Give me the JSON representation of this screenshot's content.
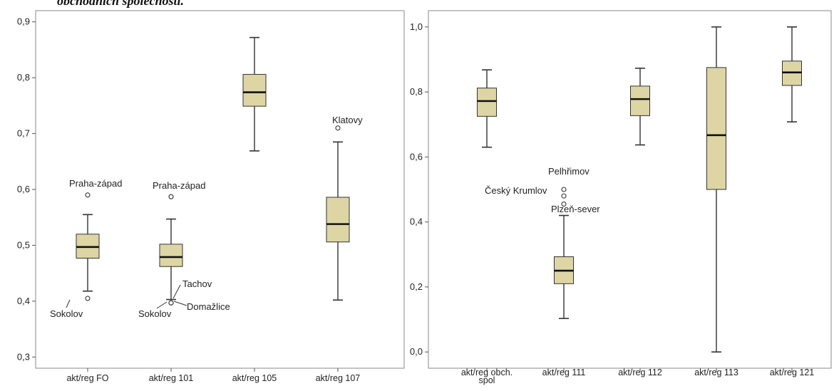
{
  "heading": "obchodních společností.",
  "colors": {
    "box_fill": "#ddd5a4",
    "box_stroke": "#333333",
    "frame": "#8a8a8a"
  },
  "chart_data": [
    {
      "type": "box",
      "ylim": [
        0.28,
        0.92
      ],
      "yticks": [
        "0,9",
        "0,8",
        "0,7",
        "0,6",
        "0,5",
        "0,4",
        "0,3"
      ],
      "ytick_values": [
        0.9,
        0.8,
        0.7,
        0.6,
        0.5,
        0.4,
        0.3
      ],
      "grid": false,
      "boxes": [
        {
          "label": "akt/reg FO",
          "whisker_low": 0.418,
          "q1": 0.477,
          "median": 0.497,
          "q3": 0.52,
          "whisker_high": 0.555,
          "outliers": [
            {
              "value": 0.59,
              "label": "Praha-západ"
            },
            {
              "value": 0.405,
              "label": "Sokolov"
            }
          ]
        },
        {
          "label": "akt/reg 101",
          "whisker_low": 0.403,
          "q1": 0.462,
          "median": 0.479,
          "q3": 0.502,
          "whisker_high": 0.547,
          "outliers": [
            {
              "value": 0.587,
              "label": "Praha-západ"
            },
            {
              "value": 0.397,
              "label": "Tachov"
            },
            {
              "value": 0.397,
              "label": "Sokolov"
            },
            {
              "value": 0.397,
              "label": "Domažlice"
            }
          ]
        },
        {
          "label": "akt/reg 105",
          "whisker_low": 0.669,
          "q1": 0.749,
          "median": 0.774,
          "q3": 0.806,
          "whisker_high": 0.872,
          "outliers": []
        },
        {
          "label": "akt/reg 107",
          "whisker_low": 0.402,
          "q1": 0.506,
          "median": 0.538,
          "q3": 0.586,
          "whisker_high": 0.685,
          "outliers": [
            {
              "value": 0.71,
              "label": "Klatovy"
            }
          ]
        }
      ]
    },
    {
      "type": "box",
      "ylim": [
        -0.05,
        1.05
      ],
      "yticks": [
        "1,0",
        "0,8",
        "0,6",
        "0,4",
        "0,2",
        "0,0"
      ],
      "ytick_values": [
        1.0,
        0.8,
        0.6,
        0.4,
        0.2,
        0.0
      ],
      "grid": false,
      "boxes": [
        {
          "label": "akt/reg obch. spol",
          "label_lines": [
            "akt/reg obch.",
            "spol"
          ],
          "whisker_low": 0.63,
          "q1": 0.725,
          "median": 0.772,
          "q3": 0.812,
          "whisker_high": 0.868,
          "outliers": []
        },
        {
          "label": "akt/reg 111",
          "whisker_low": 0.103,
          "q1": 0.21,
          "median": 0.25,
          "q3": 0.293,
          "whisker_high": 0.42,
          "outliers": [
            {
              "value": 0.5,
              "label": "Pelhřimov"
            },
            {
              "value": 0.48,
              "label": "Český Krumlov"
            },
            {
              "value": 0.455,
              "label": "Plzeň-sever"
            }
          ]
        },
        {
          "label": "akt/reg 112",
          "whisker_low": 0.637,
          "q1": 0.727,
          "median": 0.778,
          "q3": 0.818,
          "whisker_high": 0.873,
          "outliers": []
        },
        {
          "label": "akt/reg 113",
          "whisker_low": 0.0,
          "q1": 0.5,
          "median": 0.667,
          "q3": 0.875,
          "whisker_high": 1.0,
          "outliers": []
        },
        {
          "label": "akt/reg 121",
          "whisker_low": 0.708,
          "q1": 0.82,
          "median": 0.86,
          "q3": 0.895,
          "whisker_high": 1.0,
          "outliers": []
        }
      ]
    }
  ]
}
